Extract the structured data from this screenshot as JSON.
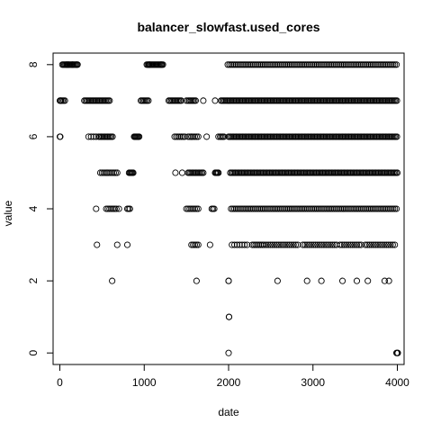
{
  "chart_data": {
    "type": "scatter",
    "title": "balancer_slowfast.used_cores",
    "xlabel": "date",
    "ylabel": "value",
    "xlim": [
      -80,
      4080
    ],
    "ylim": [
      -0.32,
      8.32
    ],
    "xticks": [
      0,
      1000,
      2000,
      3000,
      4000
    ],
    "xtick_labels": [
      "0",
      "1000",
      "2000",
      "3000",
      "4000"
    ],
    "yticks": [
      0,
      2,
      4,
      6,
      8
    ],
    "ytick_labels": [
      "0",
      "2",
      "4",
      "6",
      "8"
    ],
    "grid": false,
    "marker": "open-circle",
    "marker_color": "#000000",
    "series": [
      {
        "segments": [
          {
            "y": 8,
            "x_from": 30,
            "x_to": 220,
            "step": 12
          },
          {
            "y": 8,
            "x_from": 1030,
            "x_to": 1230,
            "step": 12
          },
          {
            "y": 8,
            "x_from": 1990,
            "x_to": 4000,
            "step": 20
          },
          {
            "y": 7,
            "x_from": 0,
            "x_to": 60,
            "step": 15
          },
          {
            "y": 7,
            "x_from": 290,
            "x_to": 600,
            "step": 15
          },
          {
            "y": 7,
            "x_from": 960,
            "x_to": 1060,
            "step": 15
          },
          {
            "y": 7,
            "x_from": 1290,
            "x_to": 1450,
            "step": 15
          },
          {
            "y": 7,
            "x_from": 1520,
            "x_to": 1610,
            "step": 15
          },
          {
            "y": 7,
            "x_from": 1910,
            "x_to": 4000,
            "step": 15
          },
          {
            "y": 6,
            "x_from": 340,
            "x_to": 430,
            "step": 30
          },
          {
            "y": 6,
            "x_from": 460,
            "x_to": 630,
            "step": 15
          },
          {
            "y": 6,
            "x_from": 880,
            "x_to": 940,
            "step": 10
          },
          {
            "y": 6,
            "x_from": 1360,
            "x_to": 1480,
            "step": 20
          },
          {
            "y": 6,
            "x_from": 1520,
            "x_to": 1650,
            "step": 20
          },
          {
            "y": 6,
            "x_from": 1900,
            "x_to": 1950,
            "step": 15
          },
          {
            "y": 6,
            "x_from": 2000,
            "x_to": 4000,
            "step": 15
          },
          {
            "y": 5,
            "x_from": 480,
            "x_to": 690,
            "step": 20
          },
          {
            "y": 5,
            "x_from": 820,
            "x_to": 870,
            "step": 10
          },
          {
            "y": 5,
            "x_from": 1520,
            "x_to": 1700,
            "step": 15
          },
          {
            "y": 5,
            "x_from": 1840,
            "x_to": 1880,
            "step": 10
          },
          {
            "y": 5,
            "x_from": 2020,
            "x_to": 4000,
            "step": 15
          },
          {
            "y": 4,
            "x_from": 550,
            "x_to": 670,
            "step": 20
          },
          {
            "y": 4,
            "x_from": 800,
            "x_to": 830,
            "step": 15
          },
          {
            "y": 4,
            "x_from": 1500,
            "x_to": 1640,
            "step": 20
          },
          {
            "y": 4,
            "x_from": 1800,
            "x_to": 1830,
            "step": 15
          },
          {
            "y": 4,
            "x_from": 2030,
            "x_to": 4000,
            "step": 20
          },
          {
            "y": 3,
            "x_from": 1560,
            "x_to": 1640,
            "step": 20
          },
          {
            "y": 3,
            "x_from": 2040,
            "x_to": 2220,
            "step": 30
          },
          {
            "y": 3,
            "x_from": 2280,
            "x_to": 2400,
            "step": 20
          },
          {
            "y": 3,
            "x_from": 2420,
            "x_to": 2840,
            "step": 25
          },
          {
            "y": 3,
            "x_from": 2880,
            "x_to": 3280,
            "step": 25
          },
          {
            "y": 3,
            "x_from": 3320,
            "x_to": 3580,
            "step": 25
          },
          {
            "y": 3,
            "x_from": 3620,
            "x_to": 3970,
            "step": 25
          }
        ],
        "points": [
          [
            0,
            6
          ],
          [
            5,
            6
          ],
          [
            10,
            7
          ],
          [
            80,
            8
          ],
          [
            100,
            8
          ],
          [
            150,
            8
          ],
          [
            200,
            8
          ],
          [
            1060,
            8
          ],
          [
            1200,
            8
          ],
          [
            430,
            4
          ],
          [
            440,
            3
          ],
          [
            560,
            5
          ],
          [
            620,
            2
          ],
          [
            680,
            3
          ],
          [
            700,
            4
          ],
          [
            800,
            3
          ],
          [
            1370,
            5
          ],
          [
            1450,
            5
          ],
          [
            1500,
            7
          ],
          [
            1560,
            6
          ],
          [
            1620,
            2
          ],
          [
            1700,
            7
          ],
          [
            1740,
            6
          ],
          [
            1780,
            3
          ],
          [
            1840,
            7
          ],
          [
            1880,
            6
          ],
          [
            2000,
            2
          ],
          [
            2000,
            2
          ],
          [
            2005,
            1
          ],
          [
            2005,
            1
          ],
          [
            2000,
            0
          ],
          [
            2580,
            2
          ],
          [
            2930,
            2
          ],
          [
            3100,
            2
          ],
          [
            3350,
            2
          ],
          [
            3520,
            2
          ],
          [
            3650,
            2
          ],
          [
            3850,
            2
          ],
          [
            3900,
            2
          ],
          [
            4000,
            0
          ],
          [
            4005,
            0
          ],
          [
            3990,
            0
          ]
        ]
      }
    ]
  }
}
